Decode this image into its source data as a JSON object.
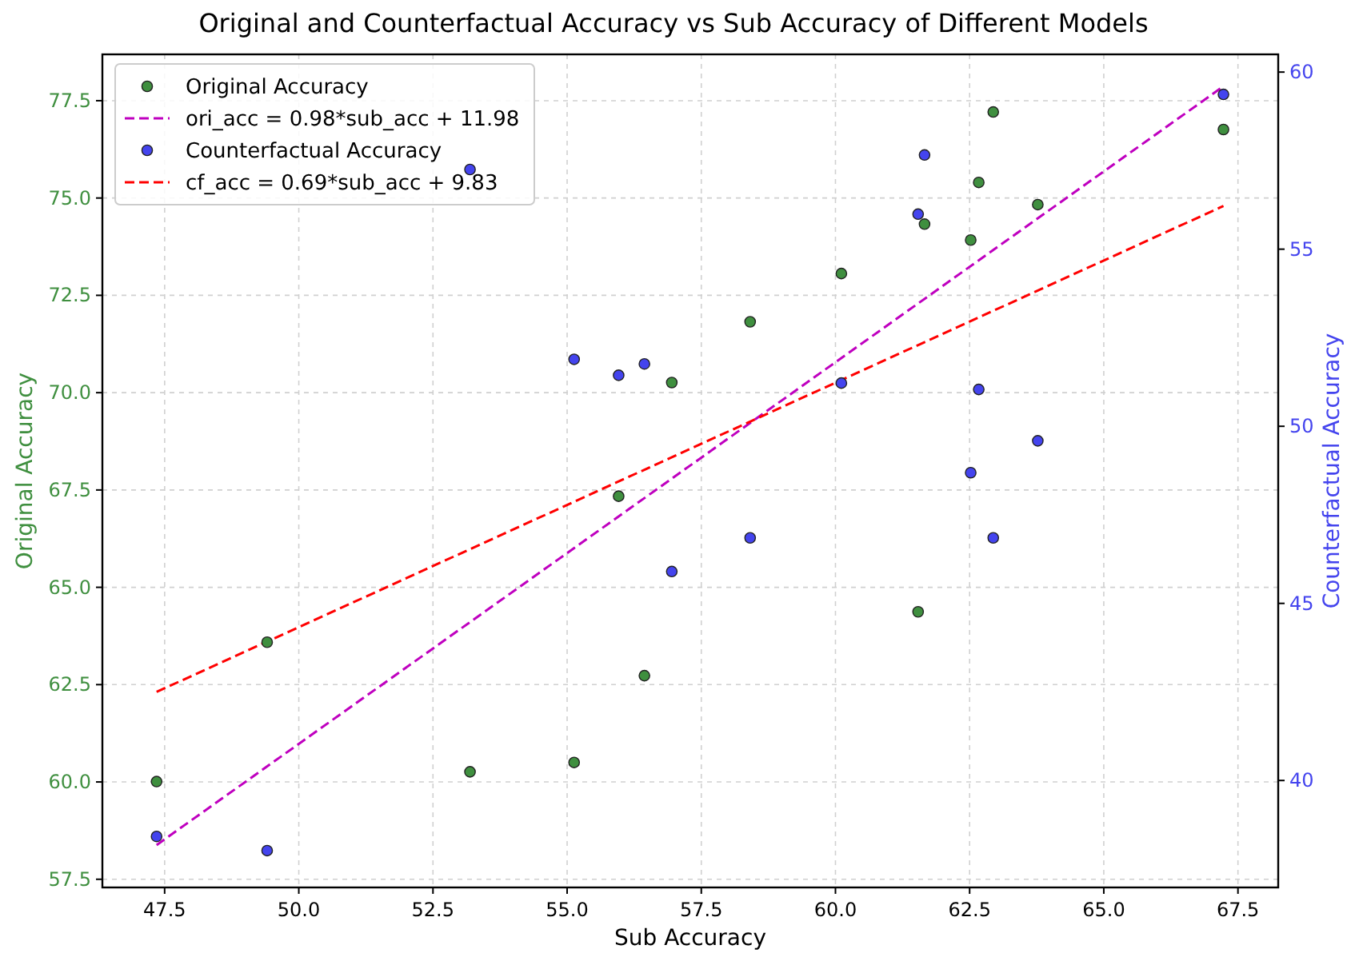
{
  "chart_data": {
    "type": "scatter",
    "title": "Original and Counterfactual Accuracy vs Sub Accuracy of Different Models",
    "xlabel": "Sub Accuracy",
    "ylabel": "Original Accuracy",
    "y2label": "Counterfactual Accuracy",
    "xlim": [
      46.34,
      68.25
    ],
    "ylim": [
      57.29,
      78.69
    ],
    "y2lim": [
      36.98,
      60.5
    ],
    "xticks": [
      {
        "value": 47.5,
        "label": "47.5"
      },
      {
        "value": 50,
        "label": "50.0"
      },
      {
        "value": 52.5,
        "label": "52.5"
      },
      {
        "value": 55,
        "label": "55.0"
      },
      {
        "value": 57.5,
        "label": "57.5"
      },
      {
        "value": 60,
        "label": "60.0"
      },
      {
        "value": 62.5,
        "label": "62.5"
      },
      {
        "value": 65,
        "label": "65.0"
      },
      {
        "value": 67.5,
        "label": "67.5"
      }
    ],
    "yticks": [
      {
        "value": 57.5,
        "label": "57.5"
      },
      {
        "value": 60,
        "label": "60.0"
      },
      {
        "value": 62.5,
        "label": "62.5"
      },
      {
        "value": 65,
        "label": "65.0"
      },
      {
        "value": 67.5,
        "label": "67.5"
      },
      {
        "value": 70,
        "label": "70.0"
      },
      {
        "value": 72.5,
        "label": "72.5"
      },
      {
        "value": 75,
        "label": "75.0"
      },
      {
        "value": 77.5,
        "label": "77.5"
      }
    ],
    "y2ticks": [
      40,
      45,
      50,
      55,
      60
    ],
    "grid": true,
    "legend": "top left",
    "series": [
      {
        "name": "Original Accuracy",
        "marker": "circle",
        "axis": "y",
        "color": "#3f8f3f",
        "x": [
          47.35,
          49.41,
          53.19,
          55.13,
          55.96,
          56.44,
          56.95,
          58.41,
          60.11,
          61.54,
          61.66,
          62.52,
          62.67,
          62.94,
          63.77,
          67.23
        ],
        "values": [
          60.01,
          63.59,
          60.26,
          60.5,
          67.34,
          62.73,
          70.26,
          71.82,
          73.06,
          64.37,
          74.33,
          73.92,
          75.4,
          77.21,
          74.83,
          76.76
        ]
      },
      {
        "name": "ori_acc = 0.98*sub_acc + 11.98",
        "type": "line",
        "axis": "y",
        "color": "#bf00bf",
        "line_style": "dashed",
        "marker": "none",
        "x": [
          47.35,
          67.23
        ],
        "values": [
          58.38,
          77.87
        ]
      },
      {
        "name": "Counterfactual Accuracy",
        "marker": "circle",
        "axis": "y2",
        "color": "#4444ee",
        "x": [
          47.35,
          49.41,
          53.19,
          55.13,
          55.96,
          56.44,
          56.95,
          58.41,
          60.11,
          61.54,
          61.66,
          62.52,
          62.67,
          62.94,
          63.77,
          67.23
        ],
        "values": [
          38.42,
          38.02,
          57.25,
          51.89,
          51.44,
          51.76,
          45.9,
          46.85,
          51.22,
          55.99,
          57.66,
          48.69,
          51.04,
          46.85,
          49.59,
          59.37
        ]
      },
      {
        "name": "cf_acc = 0.69*sub_acc + 9.83",
        "type": "line",
        "axis": "y2",
        "color": "#ff0000",
        "line_style": "dashed",
        "marker": "none",
        "x": [
          47.35,
          67.23
        ],
        "values": [
          42.5,
          56.22
        ]
      }
    ]
  }
}
